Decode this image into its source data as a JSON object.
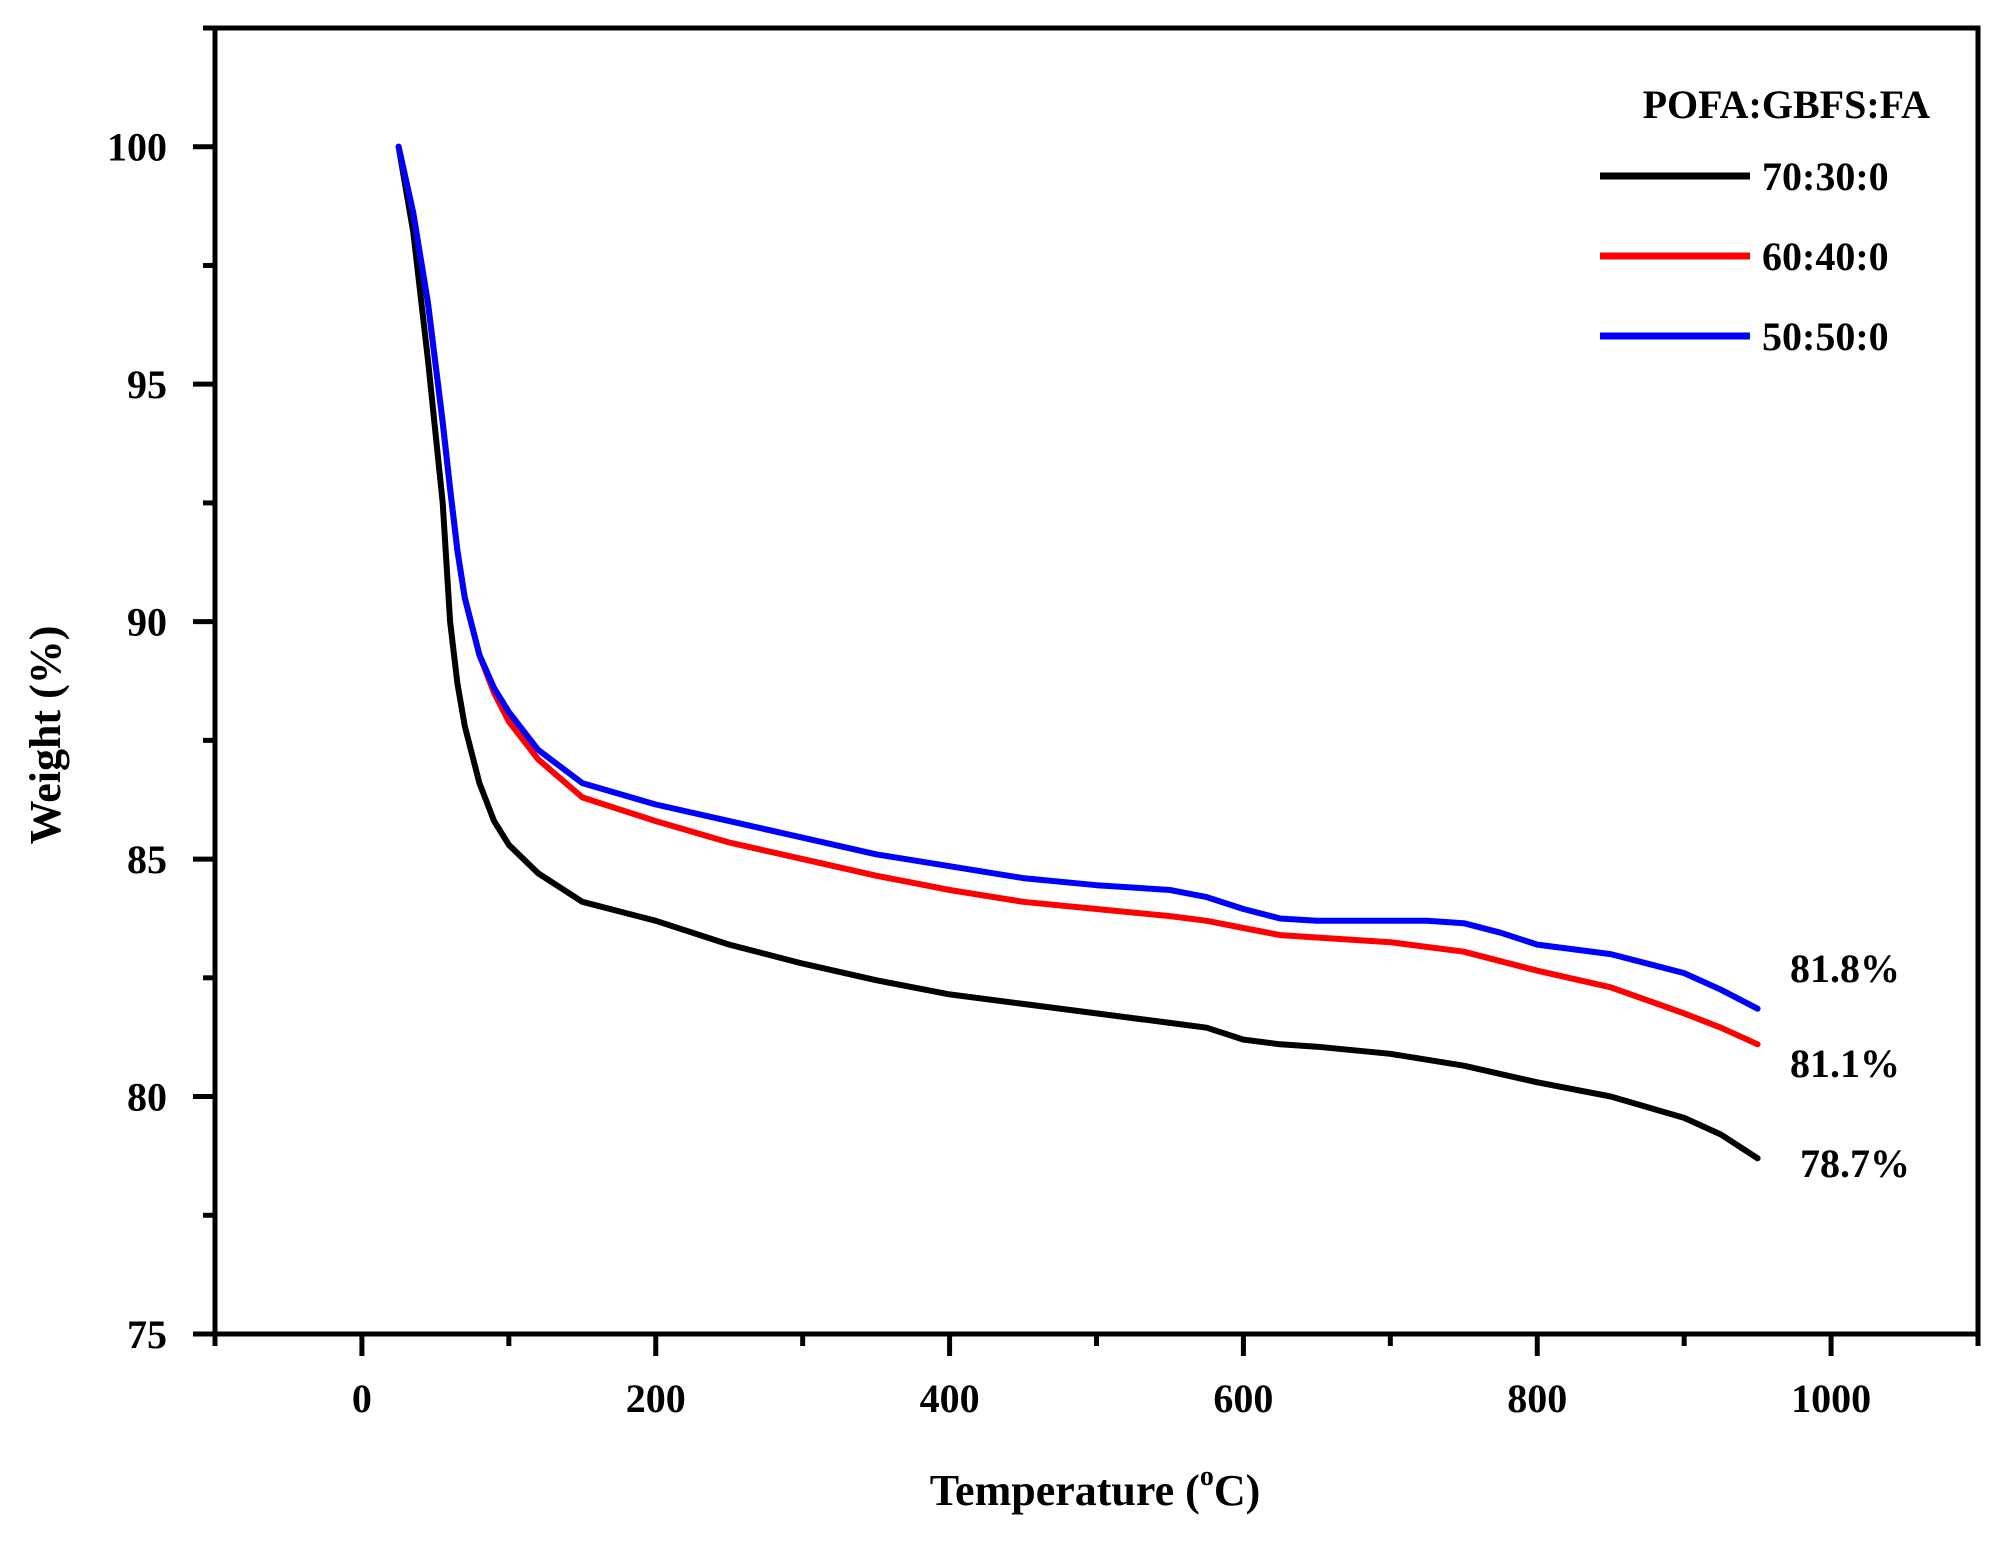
{
  "chart_data": {
    "type": "line",
    "title": "",
    "xlabel": "Temperature (°C)",
    "xlabel_main": "Temperature (",
    "xlabel_sup": "o",
    "xlabel_end": "C)",
    "ylabel": "Weight (%)",
    "xlim": [
      -100,
      1100
    ],
    "ylim": [
      75,
      102.5
    ],
    "xticks": [
      0,
      200,
      400,
      600,
      800,
      1000
    ],
    "xtick_labels": [
      "0",
      "200",
      "400",
      "600",
      "800",
      "1000"
    ],
    "yticks": [
      75,
      80,
      85,
      90,
      95,
      100
    ],
    "ytick_labels": [
      "75",
      "80",
      "85",
      "90",
      "95",
      "100"
    ],
    "grid": false,
    "legend": {
      "title": "POFA:GBFS:FA",
      "position": "top-right"
    },
    "series": [
      {
        "name": "70:30:0",
        "color": "#000000",
        "x": [
          25,
          35,
          45,
          55,
          60,
          65,
          70,
          80,
          90,
          100,
          120,
          150,
          200,
          250,
          300,
          350,
          400,
          450,
          500,
          550,
          575,
          600,
          625,
          650,
          700,
          750,
          800,
          850,
          900,
          925,
          950
        ],
        "y": [
          100,
          98.2,
          95.5,
          92.5,
          90.0,
          88.7,
          87.8,
          86.6,
          85.8,
          85.3,
          84.7,
          84.1,
          83.7,
          83.2,
          82.8,
          82.45,
          82.15,
          81.95,
          81.75,
          81.55,
          81.45,
          81.2,
          81.1,
          81.05,
          80.9,
          80.65,
          80.3,
          80.0,
          79.55,
          79.2,
          78.7
        ]
      },
      {
        "name": "60:40:0",
        "color": "#ff0000",
        "x": [
          25,
          35,
          45,
          55,
          60,
          65,
          70,
          80,
          90,
          100,
          120,
          150,
          200,
          250,
          300,
          350,
          400,
          450,
          500,
          550,
          575,
          600,
          625,
          650,
          700,
          750,
          775,
          800,
          850,
          900,
          925,
          950
        ],
        "y": [
          100,
          98.6,
          96.7,
          94.2,
          92.8,
          91.5,
          90.5,
          89.3,
          88.5,
          87.9,
          87.1,
          86.3,
          85.8,
          85.35,
          85.0,
          84.65,
          84.35,
          84.1,
          83.95,
          83.8,
          83.7,
          83.55,
          83.4,
          83.35,
          83.25,
          83.05,
          82.85,
          82.65,
          82.3,
          81.75,
          81.45,
          81.1
        ]
      },
      {
        "name": "50:50:0",
        "color": "#0000ff",
        "x": [
          25,
          35,
          45,
          55,
          60,
          65,
          70,
          80,
          90,
          100,
          120,
          150,
          200,
          250,
          300,
          350,
          400,
          450,
          500,
          550,
          575,
          600,
          625,
          650,
          700,
          725,
          750,
          775,
          800,
          850,
          900,
          925,
          950
        ],
        "y": [
          100,
          98.6,
          96.7,
          94.2,
          92.8,
          91.5,
          90.5,
          89.3,
          88.6,
          88.1,
          87.3,
          86.6,
          86.15,
          85.8,
          85.45,
          85.1,
          84.85,
          84.6,
          84.45,
          84.35,
          84.2,
          83.95,
          83.75,
          83.7,
          83.7,
          83.7,
          83.65,
          83.45,
          83.2,
          83.0,
          82.6,
          82.25,
          81.85
        ]
      }
    ],
    "annotations": [
      "81.8%",
      "81.1%",
      "78.7%"
    ]
  }
}
